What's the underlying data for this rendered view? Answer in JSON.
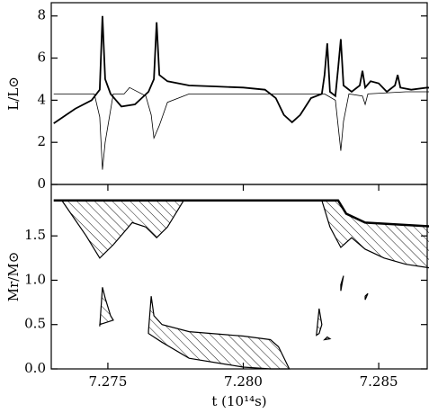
{
  "chart_data": [
    {
      "type": "line",
      "ylabel": "L/L⊙",
      "xlim": [
        7.27291,
        7.28679
      ],
      "ylim": [
        0,
        8.63
      ],
      "yticks": [
        0,
        2,
        4,
        6,
        8
      ],
      "series": [
        {
          "color": "#000",
          "width": 1.8,
          "x": [
            7.273,
            7.2738,
            7.2744,
            7.2747,
            7.2748,
            7.2749,
            7.2751,
            7.2755,
            7.276,
            7.2765,
            7.2767,
            7.2768,
            7.2769,
            7.2772,
            7.278,
            7.279,
            7.28,
            7.2808,
            7.2812,
            7.2815,
            7.2818,
            7.2821,
            7.2825,
            7.2829,
            7.283,
            7.2831,
            7.2832,
            7.2834,
            7.2835,
            7.2836,
            7.2837,
            7.284,
            7.2843,
            7.2844,
            7.2845,
            7.2847,
            7.285,
            7.2853,
            7.2856,
            7.2857,
            7.2858,
            7.2862,
            7.2868,
            7.2873
          ],
          "values": [
            2.9,
            3.6,
            4.0,
            4.5,
            8.0,
            5.0,
            4.3,
            3.7,
            3.8,
            4.4,
            5.0,
            7.7,
            5.2,
            4.9,
            4.7,
            4.65,
            4.6,
            4.5,
            4.1,
            3.3,
            2.95,
            3.3,
            4.1,
            4.3,
            5.2,
            6.7,
            4.4,
            4.2,
            5.5,
            6.9,
            4.7,
            4.4,
            4.7,
            5.4,
            4.6,
            4.9,
            4.8,
            4.4,
            4.7,
            5.2,
            4.6,
            4.5,
            4.6,
            4.5
          ]
        },
        {
          "color": "#000",
          "width": 0.8,
          "x": [
            7.273,
            7.2745,
            7.2747,
            7.2748,
            7.2749,
            7.2752,
            7.2756,
            7.2758,
            7.2764,
            7.2766,
            7.2767,
            7.2769,
            7.2772,
            7.278,
            7.28,
            7.283,
            7.2834,
            7.2835,
            7.2836,
            7.2837,
            7.2839,
            7.2844,
            7.2845,
            7.2846,
            7.286,
            7.2873
          ],
          "values": [
            4.3,
            4.3,
            3.2,
            0.7,
            2.0,
            4.3,
            4.3,
            4.6,
            4.2,
            3.3,
            2.2,
            2.8,
            3.9,
            4.3,
            4.3,
            4.3,
            4.0,
            2.8,
            1.6,
            3.0,
            4.3,
            4.2,
            3.8,
            4.3,
            4.4,
            4.4
          ]
        }
      ]
    },
    {
      "type": "kippenhahn",
      "ylabel": "Mr/M⊙",
      "xlabel": "t   (10¹⁴s)",
      "xlim": [
        7.27291,
        7.28679
      ],
      "ylim": [
        0,
        2.08
      ],
      "xticks": [
        {
          "value": 7.275,
          "label": "7.275"
        },
        {
          "value": 7.28,
          "label": "7.280"
        },
        {
          "value": 7.285,
          "label": "7.285"
        }
      ],
      "yticks": [
        {
          "value": 0,
          "label": "0.0"
        },
        {
          "value": 0.5,
          "label": "0.5"
        },
        {
          "value": 1,
          "label": "1.0"
        },
        {
          "value": 1.5,
          "label": "1.5"
        }
      ],
      "surface": {
        "x": [
          7.273,
          7.2835,
          7.2838,
          7.2845,
          7.2873
        ],
        "values": [
          1.9,
          1.9,
          1.75,
          1.65,
          1.6
        ]
      },
      "regions": [
        {
          "x": [
            7.2733,
            7.2742,
            7.2747,
            7.2752,
            7.2759,
            7.2764,
            7.2768,
            7.2772,
            7.2778
          ],
          "values": [
            1.9,
            1.5,
            1.25,
            1.4,
            1.65,
            1.6,
            1.48,
            1.6,
            1.9
          ]
        },
        {
          "x": [
            7.2829,
            7.2832,
            7.2836,
            7.284,
            7.2845,
            7.2852,
            7.286,
            7.2873,
            7.2873,
            7.2845,
            7.2838,
            7.2835
          ],
          "values": [
            1.9,
            1.6,
            1.37,
            1.48,
            1.35,
            1.25,
            1.18,
            1.12,
            1.6,
            1.65,
            1.75,
            1.9
          ]
        },
        {
          "x": [
            7.2747,
            7.2748,
            7.2749,
            7.2751,
            7.2752,
            7.2747
          ],
          "values": [
            0.48,
            0.92,
            0.8,
            0.6,
            0.55,
            0.5
          ]
        },
        {
          "x": [
            7.2765,
            7.2766,
            7.2767,
            7.277,
            7.278,
            7.28,
            7.281,
            7.2813,
            7.2817,
            7.281,
            7.28,
            7.278,
            7.277,
            7.2765
          ],
          "values": [
            0.43,
            0.82,
            0.6,
            0.5,
            0.42,
            0.37,
            0.33,
            0.25,
            0,
            0,
            0.02,
            0.12,
            0.3,
            0.4
          ]
        },
        {
          "x": [
            7.2827,
            7.2828,
            7.2829,
            7.2828
          ],
          "values": [
            0.38,
            0.68,
            0.5,
            0.4
          ]
        },
        {
          "x": [
            7.283,
            7.2832,
            7.2831
          ],
          "values": [
            0.33,
            0.34,
            0.36
          ]
        },
        {
          "x": [
            7.2836,
            7.2837,
            7.2836
          ],
          "values": [
            0.88,
            1.05,
            0.95
          ]
        },
        {
          "x": [
            7.2845,
            7.2846,
            7.2845
          ],
          "values": [
            0.78,
            0.85,
            0.82
          ]
        }
      ]
    }
  ]
}
